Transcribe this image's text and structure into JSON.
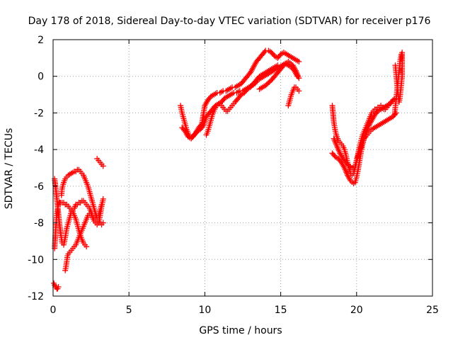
{
  "chart_data": {
    "type": "scatter",
    "title": "Day 178 of 2018, Sidereal Day-to-day VTEC variation (SDTVAR) for receiver p176",
    "xlabel": "GPS time / hours",
    "ylabel": "SDTVAR / TECUs",
    "xlim": [
      0,
      25
    ],
    "ylim": [
      -12,
      2
    ],
    "xticks": [
      "0",
      "5",
      "10",
      "15",
      "20",
      "25"
    ],
    "yticks": [
      "-12",
      "-10",
      "-8",
      "-6",
      "-4",
      "-2",
      "0",
      "2"
    ],
    "grid": true,
    "marker": "+",
    "color": "#ff0000",
    "series": [
      {
        "x": [
          0.1,
          0.15,
          0.2,
          0.25,
          0.3,
          0.35,
          0.4,
          0.45,
          0.5,
          0.6,
          0.7,
          0.8,
          0.9,
          1.0,
          1.1,
          1.2,
          1.3,
          1.4,
          1.5,
          1.6,
          1.7,
          1.8,
          1.9,
          2.0,
          2.1,
          2.2,
          2.3,
          2.4,
          2.5,
          2.6,
          2.7,
          2.8,
          2.9,
          3.0,
          3.1,
          3.2,
          3.3
        ],
        "y": [
          -9.4,
          -8.7,
          -8.0,
          -7.5,
          -7.2,
          -7.0,
          -6.9,
          -6.9,
          -6.9,
          -6.9,
          -6.9,
          -7.0,
          -7.0,
          -7.1,
          -7.2,
          -7.3,
          -7.3,
          -7.2,
          -7.0,
          -7.0,
          -6.9,
          -6.9,
          -6.8,
          -6.8,
          -6.9,
          -7.0,
          -7.1,
          -7.2,
          -7.4,
          -7.6,
          -7.7,
          -7.8,
          -7.9,
          -8.0,
          -8.0,
          -8.1,
          -8.0
        ]
      },
      {
        "x": [
          0.55,
          0.6,
          0.7,
          0.8,
          0.9,
          1.0,
          1.1,
          1.2,
          1.3,
          1.4,
          1.5,
          1.6,
          1.7,
          1.8,
          1.9,
          2.0,
          2.1,
          2.2,
          2.3,
          2.4,
          2.5,
          2.6,
          2.7,
          2.8,
          2.9,
          3.0,
          3.1,
          3.2
        ],
        "y": [
          -6.5,
          -6.1,
          -5.8,
          -5.6,
          -5.5,
          -5.4,
          -5.35,
          -5.3,
          -5.25,
          -5.2,
          -5.2,
          -5.1,
          -5.1,
          -5.2,
          -5.3,
          -5.4,
          -5.6,
          -5.8,
          -6.0,
          -6.3,
          -6.6,
          -6.9,
          -7.2,
          -7.5,
          -7.7,
          -7.6,
          -7.3,
          -7.0
        ]
      },
      {
        "x": [
          0.1,
          0.2,
          0.3,
          0.4,
          0.5,
          0.6,
          0.7,
          0.8,
          0.9,
          1.0,
          1.1,
          1.2,
          1.3,
          1.4,
          1.5,
          1.6,
          1.7,
          1.8,
          1.9,
          2.0,
          2.1,
          2.2
        ],
        "y": [
          -5.6,
          -6.3,
          -7.1,
          -7.9,
          -8.6,
          -9.1,
          -9.2,
          -8.8,
          -8.3,
          -8.0,
          -7.7,
          -7.4,
          -7.4,
          -7.6,
          -7.8,
          -8.1,
          -8.4,
          -8.7,
          -8.9,
          -9.1,
          -9.2,
          -9.3
        ]
      },
      {
        "x": [
          0.8,
          0.85,
          0.9,
          0.95,
          1.0,
          1.1,
          1.2,
          1.3,
          1.4,
          1.5,
          1.6,
          1.7,
          1.8,
          1.9,
          2.0,
          2.1,
          2.2,
          2.3,
          2.4,
          2.5,
          2.6,
          2.7,
          2.8,
          2.9,
          3.0,
          3.1,
          3.2,
          3.3
        ],
        "y": [
          -10.6,
          -10.4,
          -10.1,
          -9.8,
          -9.7,
          -9.6,
          -9.5,
          -9.4,
          -9.3,
          -9.2,
          -9.0,
          -8.8,
          -8.6,
          -8.4,
          -8.2,
          -8.0,
          -7.8,
          -7.6,
          -7.5,
          -7.6,
          -7.7,
          -7.9,
          -8.0,
          -8.1,
          -8.0,
          -7.6,
          -7.1,
          -6.7
        ]
      },
      {
        "x": [
          0.05,
          0.1,
          0.15,
          0.2,
          0.25,
          0.3,
          0.35
        ],
        "y": [
          -11.3,
          -11.4,
          -11.5,
          -11.5,
          -11.6,
          -11.6,
          -11.5
        ]
      },
      {
        "x": [
          2.9,
          3.0,
          3.1,
          3.2,
          3.3
        ],
        "y": [
          -4.5,
          -4.6,
          -4.7,
          -4.8,
          -4.9
        ]
      },
      {
        "x": [
          8.4,
          8.5,
          8.6,
          8.7,
          8.8,
          8.9,
          9.0,
          9.2,
          9.4,
          9.6,
          9.8,
          10.0,
          10.2,
          10.4,
          10.6,
          10.8,
          11.0,
          11.2,
          11.4,
          11.6,
          11.8,
          12.0,
          12.2,
          12.4,
          12.6,
          12.8,
          13.0,
          13.2,
          13.4,
          13.6,
          13.8,
          14.0,
          14.2,
          14.4,
          14.6,
          14.8,
          15.0,
          15.2,
          15.4,
          15.6,
          15.8,
          16.0,
          16.2
        ],
        "y": [
          -1.6,
          -2.0,
          -2.3,
          -2.6,
          -2.9,
          -3.1,
          -3.3,
          -3.3,
          -3.1,
          -2.8,
          -2.6,
          -1.6,
          -1.3,
          -1.1,
          -1.0,
          -0.9,
          -0.9,
          -0.8,
          -0.8,
          -0.7,
          -0.6,
          -0.6,
          -0.5,
          -0.4,
          -0.2,
          0.0,
          0.2,
          0.5,
          0.8,
          1.0,
          1.2,
          1.4,
          1.4,
          1.3,
          1.1,
          1.0,
          1.2,
          1.3,
          1.2,
          1.1,
          1.0,
          0.9,
          0.8
        ]
      },
      {
        "x": [
          8.5,
          8.7,
          8.9,
          9.1,
          9.3,
          9.5,
          9.7,
          9.9,
          10.1,
          10.3,
          10.5,
          10.7,
          10.9,
          11.1,
          11.3,
          11.5,
          11.7,
          11.9,
          12.1,
          12.3,
          12.5,
          12.7,
          12.9,
          13.1,
          13.3,
          13.5,
          13.7,
          13.9,
          14.1,
          14.3,
          14.5,
          14.7,
          14.9,
          15.1,
          15.3,
          15.5,
          15.7,
          15.9,
          16.1
        ],
        "y": [
          -2.8,
          -3.0,
          -3.3,
          -3.4,
          -3.2,
          -3.0,
          -2.9,
          -2.7,
          -2.2,
          -2.0,
          -1.8,
          -1.6,
          -1.5,
          -1.4,
          -1.2,
          -1.1,
          -1.0,
          -0.9,
          -0.9,
          -0.8,
          -0.8,
          -0.7,
          -0.6,
          -0.5,
          -0.4,
          -0.2,
          -0.1,
          0.0,
          0.1,
          0.2,
          0.3,
          0.4,
          0.5,
          0.6,
          0.7,
          0.6,
          0.5,
          0.3,
          0.0
        ]
      },
      {
        "x": [
          10.1,
          10.2,
          10.3,
          10.4,
          10.5,
          10.6,
          10.7,
          10.8,
          10.9,
          11.0,
          11.1,
          11.2,
          11.3,
          11.4,
          11.5,
          11.6,
          11.7,
          11.8,
          11.9,
          12.0,
          12.2,
          12.4,
          12.6,
          12.8,
          13.0,
          13.2,
          13.4,
          13.6,
          13.8,
          14.0,
          14.2,
          14.4,
          14.6,
          14.8
        ],
        "y": [
          -3.2,
          -3.0,
          -2.7,
          -2.4,
          -2.1,
          -1.9,
          -1.7,
          -1.6,
          -1.5,
          -1.5,
          -1.6,
          -1.7,
          -1.8,
          -1.9,
          -1.9,
          -1.8,
          -1.7,
          -1.6,
          -1.5,
          -1.4,
          -1.2,
          -1.0,
          -0.9,
          -0.7,
          -0.6,
          -0.4,
          -0.2,
          0.0,
          0.1,
          0.2,
          0.3,
          0.4,
          0.5,
          0.6
        ]
      },
      {
        "x": [
          13.6,
          14.0,
          14.4,
          14.8,
          15.2,
          15.5,
          15.8,
          16.0,
          16.2
        ],
        "y": [
          -0.7,
          -0.5,
          -0.2,
          0.2,
          0.6,
          0.8,
          0.6,
          0.3,
          -0.1
        ]
      },
      {
        "x": [
          15.5,
          15.6,
          15.7,
          15.8,
          15.9,
          16.0,
          16.1,
          16.2
        ],
        "y": [
          -1.6,
          -1.3,
          -1.0,
          -0.8,
          -0.6,
          -0.6,
          -0.7,
          -0.8
        ]
      },
      {
        "x": [
          18.4,
          18.5,
          18.6,
          18.7,
          18.8,
          18.9,
          19.0,
          19.1,
          19.2,
          19.3,
          19.4,
          19.5,
          19.6,
          19.7,
          19.8,
          19.9,
          20.0,
          20.1,
          20.2,
          20.3,
          20.4,
          20.5,
          20.6,
          20.7,
          20.8,
          20.9,
          21.0,
          21.1,
          21.2,
          21.3,
          21.4,
          21.5,
          21.6,
          21.7,
          21.8,
          21.9,
          22.0,
          22.1,
          22.2,
          22.3,
          22.4
        ],
        "y": [
          -1.6,
          -2.5,
          -3.0,
          -3.3,
          -3.5,
          -3.6,
          -3.7,
          -3.8,
          -4.0,
          -4.3,
          -4.7,
          -5.0,
          -5.3,
          -5.4,
          -5.3,
          -5.0,
          -4.6,
          -4.2,
          -3.8,
          -3.5,
          -3.2,
          -3.0,
          -2.8,
          -2.6,
          -2.4,
          -2.2,
          -2.0,
          -1.9,
          -1.8,
          -1.8,
          -1.7,
          -1.7,
          -1.6,
          -1.7,
          -1.8,
          -1.8,
          -1.7,
          -1.6,
          -1.5,
          -1.4,
          -1.3
        ]
      },
      {
        "x": [
          18.4,
          18.6,
          18.8,
          19.0,
          19.2,
          19.4,
          19.6,
          19.8,
          19.9,
          20.0,
          20.1,
          20.2,
          20.3,
          20.4,
          20.5,
          20.6,
          20.7,
          20.8,
          20.9,
          21.0,
          21.2,
          21.4,
          21.6,
          21.8,
          22.0,
          22.2,
          22.4,
          22.6
        ],
        "y": [
          -4.2,
          -4.4,
          -4.5,
          -4.7,
          -5.0,
          -5.4,
          -5.7,
          -5.85,
          -5.8,
          -5.5,
          -5.1,
          -4.6,
          -4.1,
          -3.7,
          -3.4,
          -3.3,
          -3.2,
          -3.1,
          -3.0,
          -2.9,
          -2.8,
          -2.7,
          -2.6,
          -2.5,
          -2.4,
          -2.3,
          -2.2,
          -2.0
        ]
      },
      {
        "x": [
          18.5,
          18.7,
          18.9,
          19.1,
          19.3,
          19.5,
          19.7,
          19.8,
          19.9,
          20.0,
          20.2,
          20.4,
          20.6,
          20.8,
          21.0,
          21.2,
          21.4,
          21.6,
          21.8,
          22.0,
          22.2,
          22.4,
          22.6
        ],
        "y": [
          -3.4,
          -3.8,
          -4.2,
          -4.5,
          -4.7,
          -4.9,
          -5.0,
          -5.0,
          -4.9,
          -4.6,
          -4.1,
          -3.6,
          -3.1,
          -2.7,
          -2.4,
          -2.1,
          -1.9,
          -1.8,
          -1.7,
          -1.6,
          -1.5,
          -1.3,
          -1.2
        ]
      },
      {
        "x": [
          22.5,
          22.55,
          22.6,
          22.65,
          22.7,
          22.75,
          22.8,
          22.85,
          22.9,
          22.95,
          23.0,
          23.0,
          22.95,
          22.9,
          22.85,
          22.8,
          22.75,
          22.7,
          22.65,
          22.6,
          22.55
        ],
        "y": [
          -2.1,
          -1.7,
          -1.3,
          -0.9,
          -0.5,
          -0.1,
          0.3,
          0.7,
          1.0,
          1.2,
          1.3,
          0.0,
          -0.4,
          -0.8,
          -1.2,
          -1.4,
          -1.1,
          -0.7,
          -0.3,
          0.2,
          0.6
        ]
      }
    ]
  }
}
